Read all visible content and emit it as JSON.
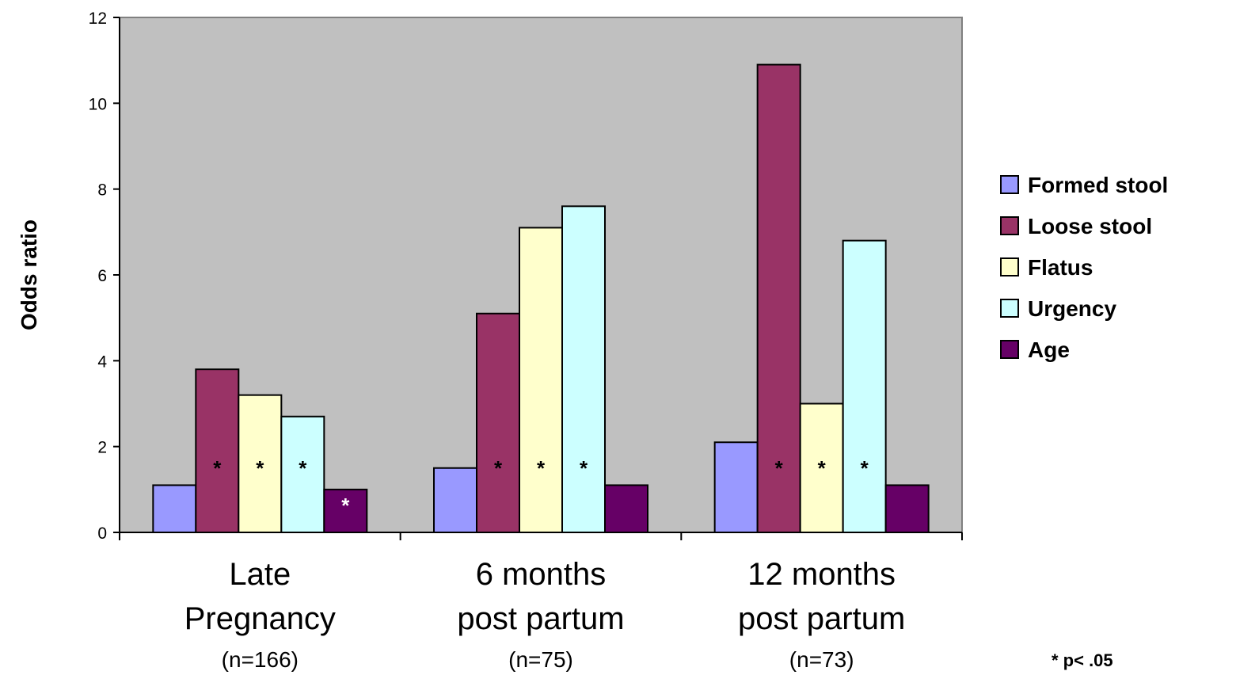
{
  "chart_data": {
    "type": "bar",
    "ylabel": "Odds ratio",
    "xlabel": "",
    "ylim": [
      0,
      12
    ],
    "yticks": [
      "0",
      "2",
      "4",
      "6",
      "8",
      "10",
      "12"
    ],
    "grid": false,
    "legend_position": "right",
    "plot_background": "#C0C0C0",
    "categories": [
      {
        "label_lines": [
          "Late",
          "Pregnancy"
        ],
        "n": "(n=166)"
      },
      {
        "label_lines": [
          "6 months",
          "post partum"
        ],
        "n": "(n=75)"
      },
      {
        "label_lines": [
          "12 months",
          "post partum"
        ],
        "n": "(n=73)"
      }
    ],
    "series": [
      {
        "name": "Formed stool",
        "color": "#9999FF",
        "values": [
          1.1,
          1.5,
          2.1
        ],
        "significant": [
          false,
          false,
          false
        ]
      },
      {
        "name": "Loose stool",
        "color": "#993366",
        "values": [
          3.8,
          5.1,
          10.9
        ],
        "significant": [
          true,
          true,
          true
        ]
      },
      {
        "name": "Flatus",
        "color": "#FFFFCC",
        "values": [
          3.2,
          7.1,
          3.0
        ],
        "significant": [
          true,
          true,
          true
        ]
      },
      {
        "name": "Urgency",
        "color": "#CCFFFF",
        "values": [
          2.7,
          7.6,
          6.8
        ],
        "significant": [
          true,
          true,
          true
        ]
      },
      {
        "name": "Age",
        "color": "#660066",
        "values": [
          1.0,
          1.1,
          1.1
        ],
        "significant": [
          true,
          false,
          false
        ]
      }
    ],
    "significance_marker": "*",
    "footnote": "* p< .05"
  }
}
